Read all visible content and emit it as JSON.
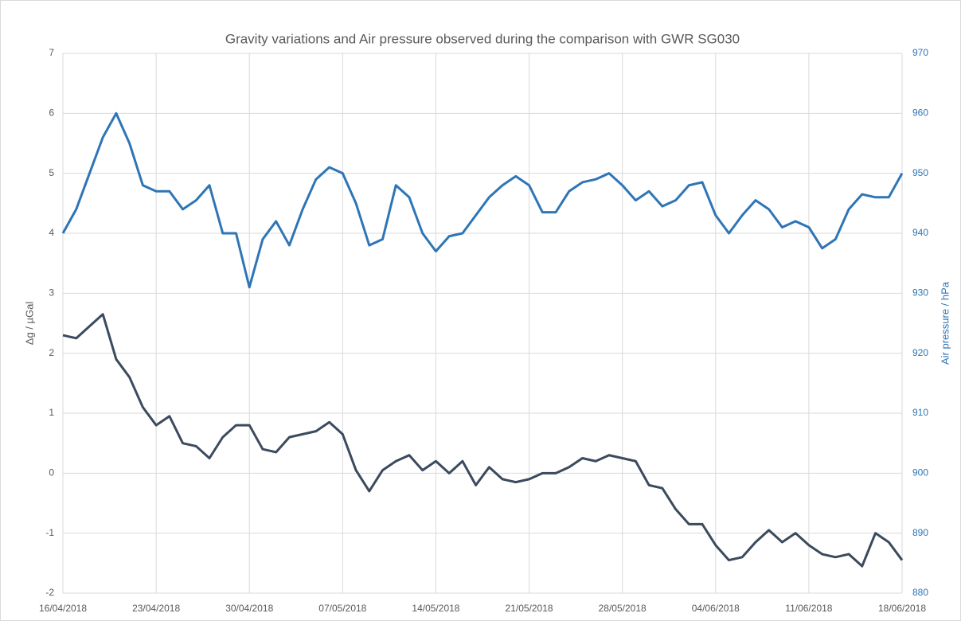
{
  "chart_data": {
    "type": "line",
    "title": "Gravity variations and Air pressure observed during the comparison with GWR SG030",
    "ylabel": "Δg / µGal",
    "y2label": "Air pressure / hPa",
    "x": [
      "16/04/2018",
      "17/04/2018",
      "18/04/2018",
      "19/04/2018",
      "20/04/2018",
      "21/04/2018",
      "22/04/2018",
      "23/04/2018",
      "24/04/2018",
      "25/04/2018",
      "26/04/2018",
      "27/04/2018",
      "28/04/2018",
      "29/04/2018",
      "30/04/2018",
      "01/05/2018",
      "02/05/2018",
      "03/05/2018",
      "04/05/2018",
      "05/05/2018",
      "06/05/2018",
      "07/05/2018",
      "08/05/2018",
      "09/05/2018",
      "10/05/2018",
      "11/05/2018",
      "12/05/2018",
      "13/05/2018",
      "14/05/2018",
      "15/05/2018",
      "16/05/2018",
      "17/05/2018",
      "18/05/2018",
      "19/05/2018",
      "20/05/2018",
      "21/05/2018",
      "22/05/2018",
      "23/05/2018",
      "24/05/2018",
      "25/05/2018",
      "26/05/2018",
      "27/05/2018",
      "28/05/2018",
      "29/05/2018",
      "30/05/2018",
      "31/05/2018",
      "01/06/2018",
      "02/06/2018",
      "03/06/2018",
      "04/06/2018",
      "05/06/2018",
      "06/06/2018",
      "07/06/2018",
      "08/06/2018",
      "09/06/2018",
      "10/06/2018",
      "11/06/2018",
      "12/06/2018",
      "13/06/2018",
      "14/06/2018",
      "15/06/2018",
      "16/06/2018",
      "17/06/2018",
      "18/06/2018"
    ],
    "series": [
      {
        "color": "#3b4a5e",
        "values": [
          2.3,
          2.25,
          2.45,
          2.65,
          1.9,
          1.6,
          1.1,
          0.8,
          0.95,
          0.5,
          0.45,
          0.25,
          0.6,
          0.8,
          0.8,
          0.4,
          0.35,
          0.6,
          0.65,
          0.7,
          0.85,
          0.65,
          0.05,
          -0.3,
          0.05,
          0.2,
          0.3,
          0.05,
          0.2,
          0,
          0.2,
          -0.2,
          0.1,
          -0.1,
          -0.15,
          -0.1,
          0,
          0,
          0.1,
          0.25,
          0.2,
          0.3,
          0.25,
          0.2,
          -0.2,
          -0.25,
          -0.6,
          -0.85,
          -0.85,
          -1.2,
          -1.45,
          -1.4,
          -1.15,
          -0.95,
          -1.15,
          -1.0,
          -1.2,
          -1.35,
          -1.4,
          -1.35,
          -1.55,
          -1.0,
          -1.15,
          -1.45
        ]
      },
      {
        "color": "#2e75b6",
        "axis": "y2",
        "values": [
          940,
          944,
          950,
          956,
          960,
          955,
          948,
          947,
          947,
          944,
          945.5,
          948,
          940,
          940,
          931,
          939,
          942,
          938,
          944,
          949,
          951,
          950,
          945,
          938,
          939,
          948,
          946,
          940,
          937,
          939.5,
          940,
          943,
          946,
          948,
          949.5,
          948,
          943.5,
          943.5,
          947,
          948.5,
          949,
          950,
          948,
          945.5,
          947,
          944.5,
          945.5,
          948,
          948.5,
          943,
          940,
          943,
          945.5,
          944,
          941,
          942,
          941,
          937.5,
          939,
          944,
          946.5,
          946,
          946,
          950
        ]
      }
    ],
    "xlim": [
      "16/04/2018",
      "18/06/2018"
    ],
    "xticks": [
      "16/04/2018",
      "23/04/2018",
      "30/04/2018",
      "07/05/2018",
      "14/05/2018",
      "21/05/2018",
      "28/05/2018",
      "04/06/2018",
      "11/06/2018",
      "18/06/2018"
    ],
    "ylim": [
      -2,
      7
    ],
    "yticks": [
      -2,
      -1,
      0,
      1,
      2,
      3,
      4,
      5,
      6,
      7
    ],
    "y2lim": [
      880,
      970
    ],
    "y2ticks": [
      880,
      890,
      900,
      910,
      920,
      930,
      940,
      950,
      960,
      970
    ],
    "grid": true
  }
}
